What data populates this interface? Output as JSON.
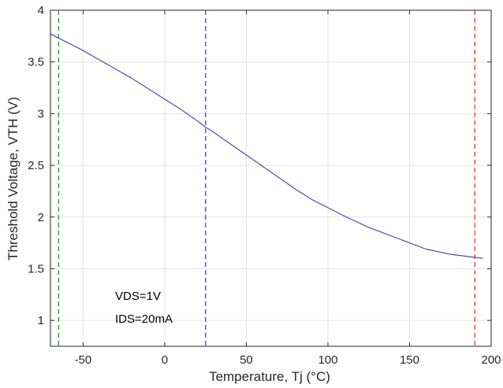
{
  "chart_data": {
    "type": "line",
    "xlabel": "Temperature, Tj (°C)",
    "ylabel": "Threshold Voltage, VTH (V)",
    "xlim": [
      -70,
      200
    ],
    "ylim": [
      0.75,
      4
    ],
    "xticks": [
      -50,
      0,
      50,
      100,
      150,
      200
    ],
    "yticks": [
      1,
      1.5,
      2,
      2.5,
      3,
      3.5,
      4
    ],
    "grid": true,
    "series": [
      {
        "color": "#4b4fa6",
        "x": [
          -70,
          -60,
          -50,
          -40,
          -30,
          -20,
          -10,
          0,
          10,
          20,
          25,
          30,
          40,
          50,
          60,
          70,
          80,
          90,
          100,
          110,
          125,
          140,
          150,
          160,
          175,
          190,
          195
        ],
        "y": [
          3.77,
          3.69,
          3.61,
          3.52,
          3.43,
          3.34,
          3.24,
          3.14,
          3.04,
          2.93,
          2.87,
          2.82,
          2.71,
          2.6,
          2.49,
          2.38,
          2.27,
          2.17,
          2.09,
          2.01,
          1.9,
          1.81,
          1.75,
          1.69,
          1.64,
          1.61,
          1.6
        ]
      }
    ],
    "reference_lines": [
      {
        "x": -65,
        "color": "#2ca02c",
        "style": "dashed"
      },
      {
        "x": 25,
        "color": "#4b4fa6",
        "style": "dashed"
      },
      {
        "x": 190,
        "color": "#e8413c",
        "style": "dashed"
      }
    ],
    "annotations": [
      "VDS=1V",
      "IDS=20mA"
    ]
  },
  "text": {
    "annotation_vds": "VDS=1V",
    "annotation_ids": "IDS=20mA",
    "xlabel": "Temperature, Tj (°C)",
    "ylabel": "Threshold Voltage, VTH (V)"
  }
}
